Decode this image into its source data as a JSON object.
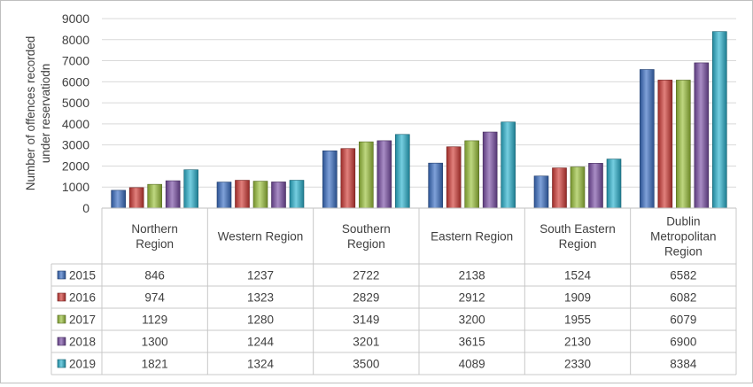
{
  "chart_data": {
    "type": "bar",
    "ylabel_lines": [
      "Number of offences recorded",
      "under reservatiodn"
    ],
    "ylim": [
      0,
      9000
    ],
    "ytick_labels": [
      "0",
      "1000",
      "2000",
      "3000",
      "4000",
      "5000",
      "6000",
      "7000",
      "8000",
      "9000"
    ],
    "gridlines": true,
    "legend_placement": "data-table",
    "categories": [
      [
        "Northern",
        "Region"
      ],
      [
        "Western Region"
      ],
      [
        "Southern",
        "Region"
      ],
      [
        "Eastern Region"
      ],
      [
        "South Eastern",
        "Region"
      ],
      [
        "Dublin",
        "Metropolitan",
        "Region"
      ]
    ],
    "series": [
      {
        "name": "2015",
        "color": "#3a6fc4",
        "values": [
          846,
          1237,
          2722,
          2138,
          1524,
          6582
        ]
      },
      {
        "name": "2016",
        "color": "#d13b36",
        "values": [
          974,
          1323,
          2829,
          2912,
          1909,
          6082
        ]
      },
      {
        "name": "2017",
        "color": "#9bc23b",
        "values": [
          1129,
          1280,
          3149,
          3200,
          1955,
          6079
        ]
      },
      {
        "name": "2018",
        "color": "#7a4fa6",
        "values": [
          1300,
          1244,
          3201,
          3615,
          2130,
          6900
        ]
      },
      {
        "name": "2019",
        "color": "#2bb3cf",
        "values": [
          1821,
          1324,
          3500,
          4089,
          2330,
          8384
        ]
      }
    ]
  }
}
